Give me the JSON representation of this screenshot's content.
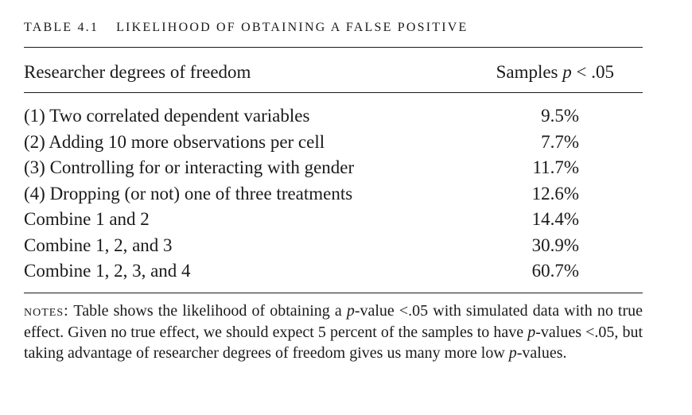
{
  "table": {
    "label": "TABLE 4.1",
    "title": "LIKELIHOOD OF OBTAINING A FALSE POSITIVE",
    "headers": {
      "col1": "Researcher degrees of freedom",
      "col2_prefix": "Samples ",
      "col2_italic": "p",
      "col2_suffix": " < .05"
    },
    "rows": [
      {
        "label": "(1) Two correlated dependent variables",
        "value": "9.5%"
      },
      {
        "label": "(2) Adding 10 more observations per cell",
        "value": "7.7%"
      },
      {
        "label": "(3) Controlling for or interacting with gender",
        "value": "11.7%"
      },
      {
        "label": "(4) Dropping (or not) one of three treatments",
        "value": "12.6%"
      },
      {
        "label": "Combine 1 and 2",
        "value": "14.4%"
      },
      {
        "label": "Combine 1, 2, and 3",
        "value": "30.9%"
      },
      {
        "label": "Combine 1, 2, 3, and 4",
        "value": "60.7%"
      }
    ]
  },
  "notes": {
    "label": "notes:",
    "t1": " Table shows the likelihood of obtaining a ",
    "p1": "p",
    "t2": "-value <.05 with simulated data with no true effect. Given no true effect, we should expect 5 percent of the samples to have ",
    "p2": "p",
    "t3": "-values <.05, but taking advantage of researcher degrees of freedom gives us many more low ",
    "p3": "p",
    "t4": "-values."
  }
}
